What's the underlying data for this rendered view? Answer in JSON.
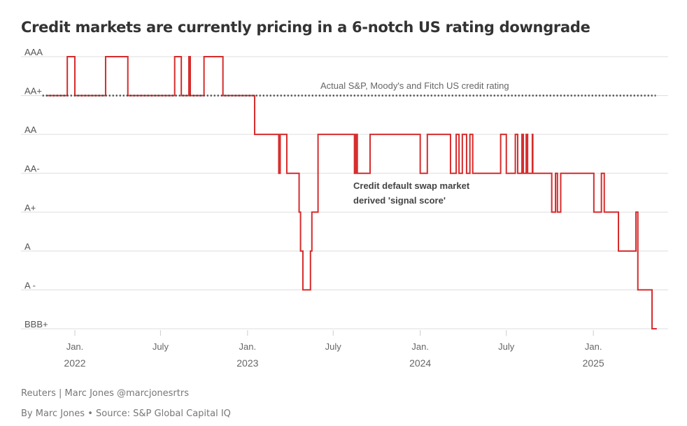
{
  "title": "Credit markets are currently pricing in a 6-notch US rating downgrade",
  "footer": {
    "credit": "Reuters | Marc Jones @marcjonesrtrs",
    "byline": "By Marc Jones • Source: S&P Global Capital IQ"
  },
  "colors": {
    "signal": "#d62b2b",
    "actual": "#444444",
    "grid": "#dddddd"
  },
  "chart_data": {
    "type": "line",
    "step": true,
    "title": "Credit markets are currently pricing in a 6-notch US rating downgrade",
    "xlabel": "",
    "ylabel": "",
    "y_categories": [
      "BBB+",
      "A -",
      "A",
      "A+",
      "AA-",
      "AA",
      "AA+",
      "AAA"
    ],
    "x_ticks": [
      {
        "date": "2022-01-01",
        "line1": "Jan.",
        "line2": "2022"
      },
      {
        "date": "2022-07-01",
        "line1": "July",
        "line2": ""
      },
      {
        "date": "2023-01-01",
        "line1": "Jan.",
        "line2": "2023"
      },
      {
        "date": "2023-07-01",
        "line1": "July",
        "line2": ""
      },
      {
        "date": "2024-01-01",
        "line1": "Jan.",
        "line2": "2024"
      },
      {
        "date": "2024-07-01",
        "line1": "July",
        "line2": ""
      },
      {
        "date": "2025-01-01",
        "line1": "Jan.",
        "line2": "2025"
      }
    ],
    "grid": true,
    "annotations": {
      "actual": "Actual S&P, Moody's and Fitch US credit rating",
      "signal": [
        "Credit default swap market",
        "derived 'signal score'"
      ]
    },
    "series": [
      {
        "name": "Actual S&P, Moody's and Fitch US credit rating",
        "style": "dotted",
        "points": [
          [
            "2021-11-01",
            "AA+"
          ],
          [
            "2025-05-10",
            "AA+"
          ]
        ]
      },
      {
        "name": "Credit default swap market derived 'signal score'",
        "style": "step",
        "points": [
          [
            "2021-11-01",
            "AA+"
          ],
          [
            "2021-12-16",
            "AAA"
          ],
          [
            "2022-01-01",
            "AA+"
          ],
          [
            "2022-03-07",
            "AAA"
          ],
          [
            "2022-04-23",
            "AA+"
          ],
          [
            "2022-07-31",
            "AAA"
          ],
          [
            "2022-08-14",
            "AA+"
          ],
          [
            "2022-08-30",
            "AAA"
          ],
          [
            "2022-09-02",
            "AA+"
          ],
          [
            "2022-10-01",
            "AAA"
          ],
          [
            "2022-11-10",
            "AA+"
          ],
          [
            "2023-01-16",
            "AA"
          ],
          [
            "2023-03-08",
            "AA-"
          ],
          [
            "2023-03-11",
            "AA"
          ],
          [
            "2023-03-25",
            "AA-"
          ],
          [
            "2023-04-20",
            "A+"
          ],
          [
            "2023-04-23",
            "A"
          ],
          [
            "2023-04-28",
            "A -"
          ],
          [
            "2023-05-14",
            "A"
          ],
          [
            "2023-05-17",
            "A+"
          ],
          [
            "2023-05-30",
            "AA"
          ],
          [
            "2023-08-15",
            "AA-"
          ],
          [
            "2023-08-18",
            "AA"
          ],
          [
            "2023-08-21",
            "AA-"
          ],
          [
            "2023-09-17",
            "AA"
          ],
          [
            "2024-01-01",
            "AA-"
          ],
          [
            "2024-01-16",
            "AA"
          ],
          [
            "2024-03-05",
            "AA-"
          ],
          [
            "2024-03-17",
            "AA"
          ],
          [
            "2024-03-23",
            "AA-"
          ],
          [
            "2024-03-30",
            "AA"
          ],
          [
            "2024-04-08",
            "AA-"
          ],
          [
            "2024-04-15",
            "AA"
          ],
          [
            "2024-04-21",
            "AA-"
          ],
          [
            "2024-06-19",
            "AA"
          ],
          [
            "2024-07-01",
            "AA-"
          ],
          [
            "2024-07-20",
            "AA"
          ],
          [
            "2024-07-25",
            "AA-"
          ],
          [
            "2024-08-03",
            "AA"
          ],
          [
            "2024-08-06",
            "AA-"
          ],
          [
            "2024-08-12",
            "AA"
          ],
          [
            "2024-08-15",
            "AA-"
          ],
          [
            "2024-08-25",
            "AA"
          ],
          [
            "2024-08-26",
            "AA-"
          ],
          [
            "2024-10-05",
            "A+"
          ],
          [
            "2024-10-13",
            "AA-"
          ],
          [
            "2024-10-17",
            "A+"
          ],
          [
            "2024-10-24",
            "AA-"
          ],
          [
            "2025-01-02",
            "A+"
          ],
          [
            "2025-01-18",
            "AA-"
          ],
          [
            "2025-01-24",
            "A+"
          ],
          [
            "2025-02-23",
            "A"
          ],
          [
            "2025-04-01",
            "A+"
          ],
          [
            "2025-04-05",
            "A -"
          ],
          [
            "2025-05-05",
            "BBB+"
          ],
          [
            "2025-05-15",
            "BBB+"
          ]
        ]
      }
    ]
  }
}
